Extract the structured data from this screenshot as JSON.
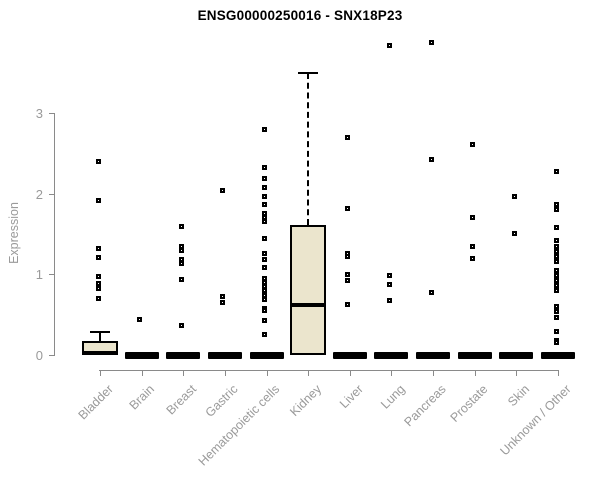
{
  "title": "ENSG00000250016 - SNX18P23",
  "colors": {
    "box_fill": "#ebe5cd",
    "box_border": "#000000",
    "axis": "#8a8a8a",
    "tick_label": "#9a9a9a",
    "title_text": "#000000"
  },
  "chart_data": {
    "type": "boxplot",
    "title": "ENSG00000250016 - SNX18P23",
    "ylabel": "Expression",
    "xlabel": "",
    "ylim": [
      0,
      3.9
    ],
    "yticks": [
      0,
      1,
      2,
      3
    ],
    "grid": false,
    "legend": false,
    "categories": [
      "Bladder",
      "Brain",
      "Breast",
      "Gastric",
      "Hematopoietic cells",
      "Kidney",
      "Liver",
      "Lung",
      "Pancreas",
      "Prostate",
      "Skin",
      "Unknown / Other"
    ],
    "boxes": [
      {
        "category": "Bladder",
        "q1": 0,
        "median": 0.03,
        "q3": 0.17,
        "whisker_low": 0,
        "whisker_high": 0.28,
        "outliers": [
          2.4,
          1.92,
          1.32,
          1.21,
          0.97,
          0.89,
          0.82,
          0.7
        ]
      },
      {
        "category": "Brain",
        "q1": 0,
        "median": 0,
        "q3": 0,
        "whisker_low": 0,
        "whisker_high": 0,
        "outliers": [
          0.44
        ]
      },
      {
        "category": "Breast",
        "q1": 0,
        "median": 0,
        "q3": 0,
        "whisker_low": 0,
        "whisker_high": 0,
        "outliers": [
          1.59,
          1.35,
          1.3,
          1.18,
          1.13,
          0.93,
          0.37
        ]
      },
      {
        "category": "Gastric",
        "q1": 0,
        "median": 0,
        "q3": 0,
        "whisker_low": 0,
        "whisker_high": 0,
        "outliers": [
          2.04,
          0.72,
          0.65
        ]
      },
      {
        "category": "Hematopoietic cells",
        "q1": 0,
        "median": 0,
        "q3": 0,
        "whisker_low": 0,
        "whisker_high": 0,
        "outliers": [
          2.8,
          2.33,
          2.19,
          2.08,
          1.97,
          1.86,
          1.76,
          1.7,
          1.66,
          1.45,
          1.26,
          1.18,
          1.09,
          0.95,
          0.9,
          0.85,
          0.8,
          0.74,
          0.69,
          0.58,
          0.55,
          0.43,
          0.25
        ]
      },
      {
        "category": "Kidney",
        "q1": 0,
        "median": 0.62,
        "q3": 1.61,
        "whisker_low": 0,
        "whisker_high": 3.49,
        "outliers": []
      },
      {
        "category": "Liver",
        "q1": 0,
        "median": 0,
        "q3": 0,
        "whisker_low": 0,
        "whisker_high": 0,
        "outliers": [
          2.7,
          1.81,
          1.26,
          1.22,
          1.0,
          0.92,
          0.62
        ]
      },
      {
        "category": "Lung",
        "q1": 0,
        "median": 0,
        "q3": 0,
        "whisker_low": 0,
        "whisker_high": 0,
        "outliers": [
          3.84,
          0.99,
          0.87,
          0.68
        ]
      },
      {
        "category": "Pancreas",
        "q1": 0,
        "median": 0,
        "q3": 0,
        "whisker_low": 0,
        "whisker_high": 0,
        "outliers": [
          3.88,
          2.42,
          0.78
        ]
      },
      {
        "category": "Prostate",
        "q1": 0,
        "median": 0,
        "q3": 0,
        "whisker_low": 0,
        "whisker_high": 0,
        "outliers": [
          2.61,
          1.71,
          1.34,
          1.2
        ]
      },
      {
        "category": "Skin",
        "q1": 0,
        "median": 0,
        "q3": 0,
        "whisker_low": 0,
        "whisker_high": 0,
        "outliers": [
          1.97,
          1.51
        ]
      },
      {
        "category": "Unknown / Other",
        "q1": 0,
        "median": 0,
        "q3": 0,
        "whisker_low": 0,
        "whisker_high": 0,
        "outliers": [
          2.28,
          1.86,
          1.8,
          1.58,
          1.42,
          1.35,
          1.28,
          1.22,
          1.16,
          1.05,
          0.98,
          0.92,
          0.86,
          0.8,
          0.6,
          0.54,
          0.47,
          0.29,
          0.18,
          0.15
        ]
      }
    ]
  }
}
